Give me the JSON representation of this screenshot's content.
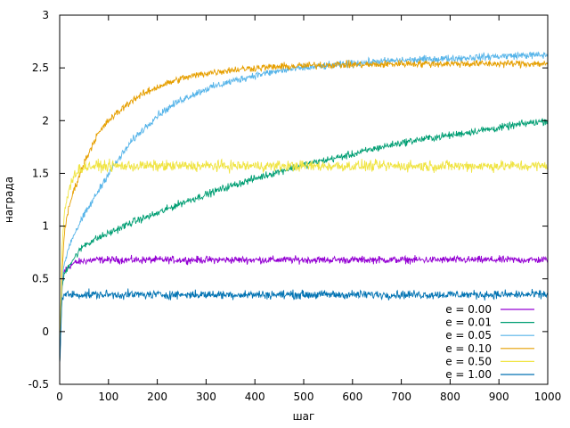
{
  "chart_data": {
    "type": "line",
    "title": "",
    "xlabel": "шаг",
    "ylabel": "награда",
    "xlim": [
      0,
      1000
    ],
    "ylim": [
      -0.5,
      3
    ],
    "x_ticks": [
      "0",
      "100",
      "200",
      "300",
      "400",
      "500",
      "600",
      "700",
      "800",
      "900",
      "1000"
    ],
    "y_ticks": [
      "-0.5",
      "0",
      "0.5",
      "1",
      "1.5",
      "2",
      "2.5",
      "3"
    ],
    "grid": false,
    "legend_position": "bottom-right",
    "x": [
      0,
      5,
      10,
      20,
      30,
      50,
      75,
      100,
      150,
      200,
      250,
      300,
      350,
      400,
      450,
      500,
      550,
      600,
      650,
      700,
      750,
      800,
      850,
      900,
      950,
      1000
    ],
    "series": [
      {
        "name": "e = 0.00",
        "color": "#9400d3",
        "noise": 0.03,
        "values": [
          -0.3,
          0.45,
          0.58,
          0.62,
          0.65,
          0.67,
          0.68,
          0.68,
          0.68,
          0.68,
          0.68,
          0.68,
          0.68,
          0.68,
          0.68,
          0.68,
          0.68,
          0.68,
          0.68,
          0.68,
          0.68,
          0.68,
          0.68,
          0.68,
          0.68,
          0.68
        ]
      },
      {
        "name": "e = 0.01",
        "color": "#009e73",
        "noise": 0.03,
        "values": [
          -0.3,
          0.42,
          0.55,
          0.64,
          0.7,
          0.82,
          0.88,
          0.93,
          1.04,
          1.12,
          1.22,
          1.3,
          1.38,
          1.45,
          1.52,
          1.58,
          1.63,
          1.68,
          1.74,
          1.79,
          1.83,
          1.86,
          1.9,
          1.93,
          1.97,
          2.0
        ]
      },
      {
        "name": "e = 0.05",
        "color": "#56b4e9",
        "noise": 0.03,
        "values": [
          -0.3,
          0.45,
          0.65,
          0.82,
          0.93,
          1.1,
          1.3,
          1.5,
          1.82,
          2.05,
          2.2,
          2.3,
          2.37,
          2.43,
          2.47,
          2.5,
          2.52,
          2.54,
          2.56,
          2.57,
          2.58,
          2.59,
          2.6,
          2.61,
          2.62,
          2.62
        ]
      },
      {
        "name": "e = 0.10",
        "color": "#e69f00",
        "noise": 0.03,
        "values": [
          -0.3,
          0.6,
          0.95,
          1.2,
          1.35,
          1.6,
          1.85,
          2.0,
          2.2,
          2.32,
          2.4,
          2.45,
          2.48,
          2.5,
          2.51,
          2.52,
          2.53,
          2.53,
          2.53,
          2.54,
          2.54,
          2.54,
          2.54,
          2.54,
          2.54,
          2.54
        ]
      },
      {
        "name": "e = 0.50",
        "color": "#f0e442",
        "noise": 0.045,
        "values": [
          -0.3,
          0.8,
          1.15,
          1.35,
          1.5,
          1.56,
          1.57,
          1.57,
          1.57,
          1.57,
          1.57,
          1.57,
          1.57,
          1.57,
          1.57,
          1.57,
          1.57,
          1.57,
          1.57,
          1.57,
          1.57,
          1.57,
          1.57,
          1.57,
          1.57,
          1.57
        ]
      },
      {
        "name": "e = 1.00",
        "color": "#0072b2",
        "noise": 0.035,
        "values": [
          -0.3,
          0.33,
          0.35,
          0.35,
          0.35,
          0.35,
          0.35,
          0.35,
          0.35,
          0.35,
          0.35,
          0.35,
          0.35,
          0.35,
          0.35,
          0.35,
          0.35,
          0.35,
          0.35,
          0.35,
          0.35,
          0.35,
          0.35,
          0.35,
          0.35,
          0.35
        ]
      }
    ]
  }
}
